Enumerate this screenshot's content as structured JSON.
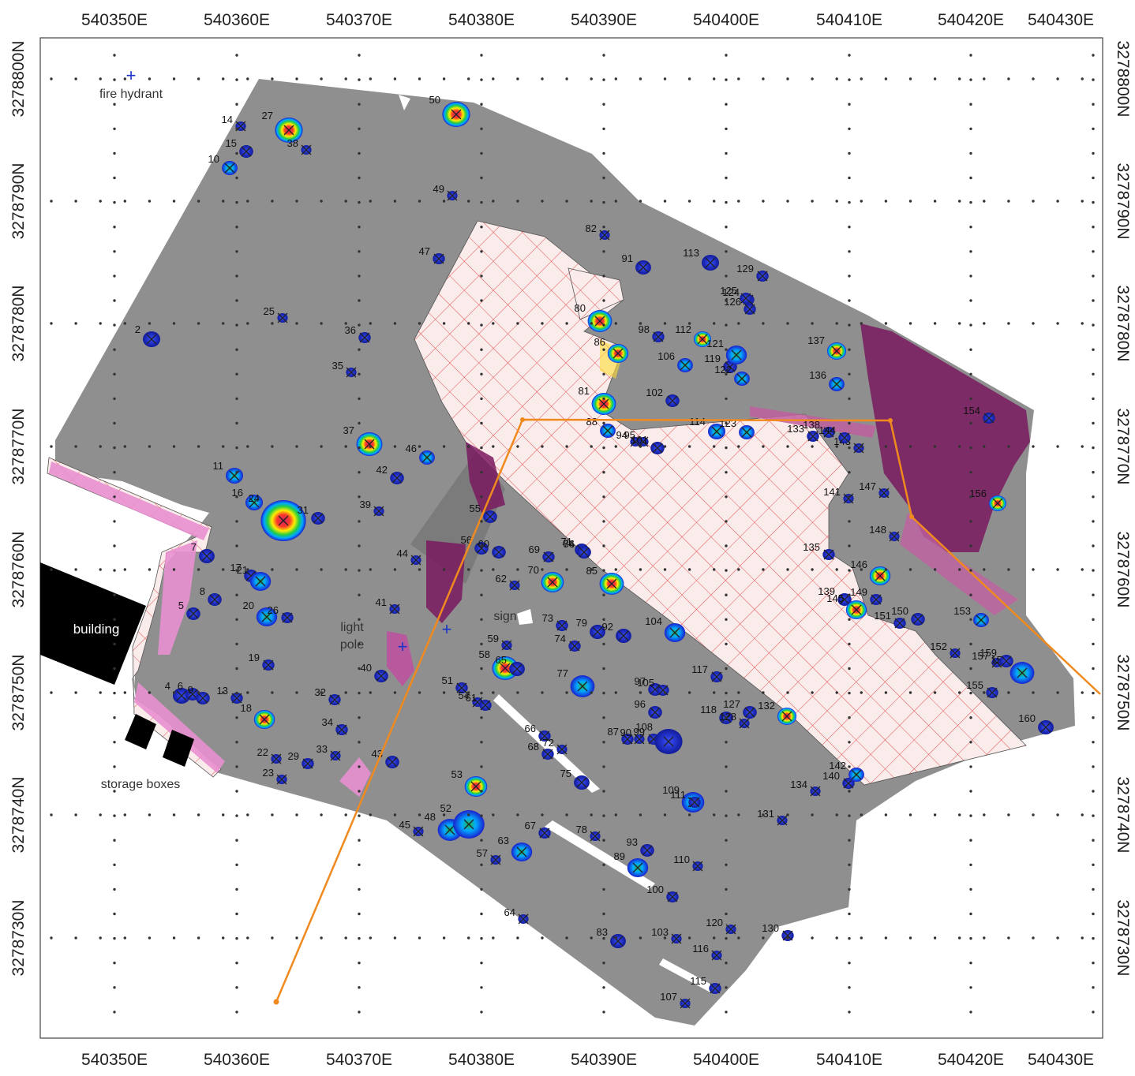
{
  "map": {
    "x_ticks": [
      "540350E",
      "540360E",
      "540370E",
      "540380E",
      "540390E",
      "540400E",
      "540410E",
      "540420E",
      "540430E"
    ],
    "y_ticks": [
      "3278800N",
      "3278790N",
      "3278780N",
      "3278770N",
      "3278760N",
      "3278750N",
      "3278740N",
      "3278730N"
    ],
    "features": {
      "fire_hydrant": "fire hydrant",
      "building": "building",
      "storage_boxes": "storage boxes",
      "light_pole_1": "light",
      "light_pole_2": "pole",
      "sign": "sign"
    },
    "colors": {
      "survey_fill": "#8f8f8f",
      "exclusion_hatch": "#e05050",
      "path_line": "#f08a1e",
      "marker": "#222222",
      "utility_marker": "#1a33c8"
    },
    "anomaly_labels": [
      "2",
      "4",
      "5",
      "6",
      "7",
      "8",
      "9",
      "10",
      "11",
      "13",
      "14",
      "15",
      "16",
      "17",
      "18",
      "19",
      "20",
      "21",
      "22",
      "23",
      "24",
      "25",
      "26",
      "27",
      "29",
      "31",
      "32",
      "33",
      "34",
      "35",
      "36",
      "37",
      "38",
      "39",
      "40",
      "41",
      "42",
      "43",
      "44",
      "45",
      "46",
      "47",
      "48",
      "49",
      "50",
      "51",
      "52",
      "53",
      "54",
      "55",
      "56",
      "57",
      "58",
      "59",
      "60",
      "61",
      "62",
      "63",
      "64",
      "65",
      "66",
      "67",
      "68",
      "69",
      "70",
      "71",
      "72",
      "73",
      "74",
      "75",
      "76",
      "77",
      "78",
      "79",
      "80",
      "81",
      "82",
      "83",
      "84",
      "85",
      "86",
      "87",
      "88",
      "89",
      "90",
      "91",
      "92",
      "93",
      "94",
      "95",
      "96",
      "97",
      "98",
      "99",
      "100",
      "101",
      "102",
      "103",
      "104",
      "105",
      "106",
      "107",
      "108",
      "109",
      "110",
      "111",
      "112",
      "113",
      "114",
      "115",
      "116",
      "117",
      "118",
      "119",
      "120",
      "121",
      "122",
      "123",
      "124",
      "125",
      "126",
      "127",
      "128",
      "129",
      "130",
      "131",
      "132",
      "133",
      "134",
      "135",
      "136",
      "137",
      "138",
      "139",
      "140",
      "141",
      "142",
      "143",
      "144",
      "145",
      "146",
      "147",
      "148",
      "149",
      "150",
      "151",
      "152",
      "153",
      "154",
      "155",
      "156",
      "157",
      "158",
      "159",
      "160"
    ]
  }
}
